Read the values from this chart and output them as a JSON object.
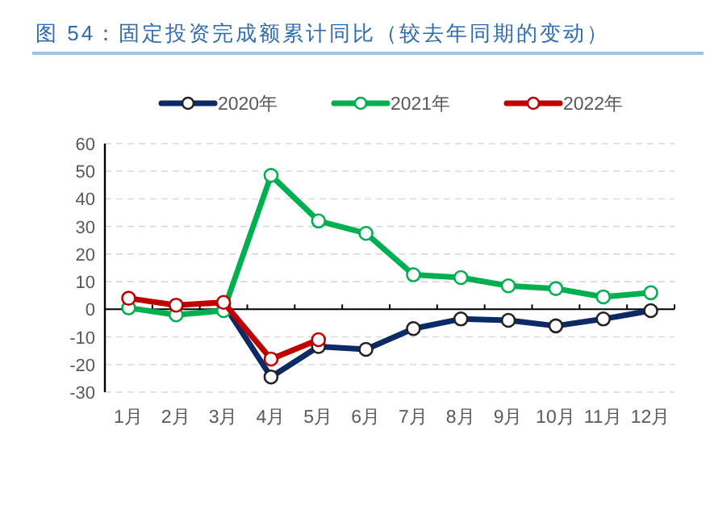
{
  "chart_data": {
    "type": "line",
    "title": "图 54：固定投资完成额累计同比（较去年同期的变动）",
    "categories": [
      "1月",
      "2月",
      "3月",
      "4月",
      "5月",
      "6月",
      "7月",
      "8月",
      "9月",
      "10月",
      "11月",
      "12月"
    ],
    "series": [
      {
        "name": "2020年",
        "color": "#0b2a66",
        "values": [
          null,
          null,
          2,
          -24.5,
          -13.5,
          -14.5,
          -7,
          -3.5,
          -4,
          -6,
          -3.5,
          -0.5
        ]
      },
      {
        "name": "2021年",
        "color": "#00b050",
        "values": [
          0.5,
          -2,
          -0.5,
          48.5,
          32,
          27.5,
          12.5,
          11.5,
          8.5,
          7.5,
          4.5,
          6
        ]
      },
      {
        "name": "2022年",
        "color": "#c00000",
        "values": [
          4,
          1.5,
          2.5,
          -18,
          -11,
          null,
          null,
          null,
          null,
          null,
          null,
          null
        ]
      }
    ],
    "ylim": [
      -30,
      60
    ],
    "yticks": [
      -30,
      -20,
      -10,
      0,
      10,
      20,
      30,
      40,
      50,
      60
    ],
    "grid": "y",
    "legend": "top",
    "marker": "circle",
    "line_style": "solid"
  }
}
